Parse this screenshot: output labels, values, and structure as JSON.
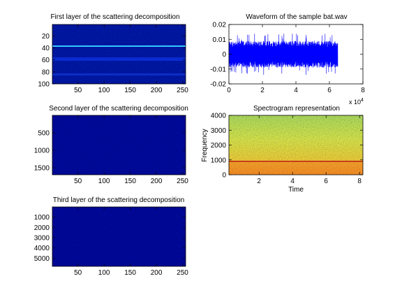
{
  "chart_data": [
    {
      "type": "heatmap",
      "title": "First layer of the scattering decomposition",
      "xlabel": "",
      "ylabel": "",
      "xlim": [
        1,
        256
      ],
      "ylim": [
        100,
        1
      ],
      "xticks": [
        50,
        100,
        150,
        200,
        250
      ],
      "yticks": [
        20,
        40,
        60,
        80,
        100
      ],
      "colormap": "jet",
      "values_desc": "mostly deep blue; bright cyan line near row 37; lighter bands near rows 55-60 and 85"
    },
    {
      "type": "line",
      "title": "Waveform of the sample bat.wav",
      "xlabel": "",
      "ylabel": "",
      "xlim": [
        0,
        80000
      ],
      "ylim": [
        -0.02,
        0.02
      ],
      "xticks": [
        0,
        20000,
        40000,
        60000,
        80000
      ],
      "xtick_labels": [
        "0",
        "2",
        "4",
        "6",
        "8"
      ],
      "x_multiplier": "x 10",
      "x_multiplier_exp": "4",
      "yticks": [
        -0.02,
        -0.01,
        0,
        0.01,
        0.02
      ],
      "ytick_labels": [
        "-0.02",
        "-0.01",
        "0",
        "0.01",
        "0.02"
      ],
      "series": [
        {
          "x_start": 0,
          "x_end": 65000,
          "amplitude": 0.009,
          "peak": 0.014,
          "color": "#0000ff"
        }
      ]
    },
    {
      "type": "heatmap",
      "title": "Second layer of the scattering decomposition",
      "xlabel": "",
      "ylabel": "",
      "xlim": [
        1,
        256
      ],
      "ylim": [
        1700,
        1
      ],
      "xticks": [
        50,
        100,
        150,
        200,
        250
      ],
      "yticks": [
        500,
        1000,
        1500
      ],
      "colormap": "jet",
      "values_desc": "almost uniformly deep blue"
    },
    {
      "type": "heatmap",
      "title": "Spectrogram representation",
      "xlabel": "Time",
      "ylabel": "Frequency",
      "xlim": [
        0.2,
        8.2
      ],
      "ylim": [
        0,
        4000
      ],
      "xticks": [
        2,
        4,
        6,
        8
      ],
      "yticks": [
        0,
        1000,
        2000,
        3000,
        4000
      ],
      "colormap": "jet",
      "values_desc": "yellow-green noise field, orange/red at low frequencies, red line near 900"
    },
    {
      "type": "heatmap",
      "title": "Third layer of the scattering decomposition",
      "xlabel": "",
      "ylabel": "",
      "xlim": [
        1,
        256
      ],
      "ylim": [
        5800,
        1
      ],
      "xticks": [
        50,
        100,
        150,
        200,
        250
      ],
      "yticks": [
        1000,
        2000,
        3000,
        4000,
        5000
      ],
      "colormap": "jet",
      "values_desc": "almost uniformly deep blue"
    }
  ]
}
